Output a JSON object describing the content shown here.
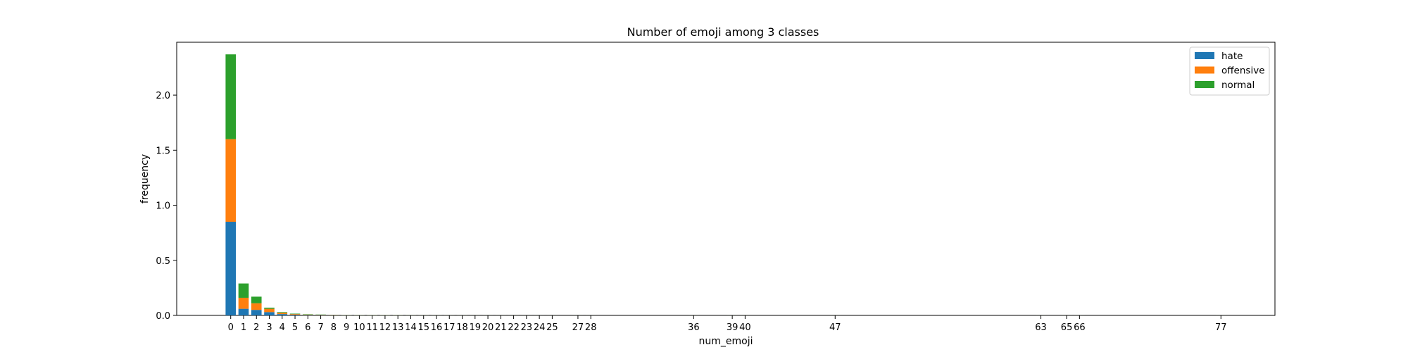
{
  "chart_data": {
    "type": "bar",
    "stacked": true,
    "title": "Number of emoji among 3 classes",
    "xlabel": "num_emoji",
    "ylabel": "frequency",
    "ylim": [
      0,
      2.48
    ],
    "xlim": [
      -4.2,
      81.2
    ],
    "yticks": [
      0.0,
      0.5,
      1.0,
      1.5,
      2.0
    ],
    "ytick_labels": [
      "0.0",
      "0.5",
      "1.0",
      "1.5",
      "2.0"
    ],
    "x": [
      0,
      1,
      2,
      3,
      4,
      5,
      6,
      7,
      8,
      9,
      10,
      11,
      12,
      13,
      14,
      15,
      16,
      17,
      18,
      19,
      20,
      21,
      22,
      23,
      24,
      25,
      27,
      28,
      36,
      39,
      40,
      47,
      63,
      65,
      66,
      77
    ],
    "series": [
      {
        "name": "hate",
        "color": "#1f77b4",
        "values": [
          0.85,
          0.06,
          0.05,
          0.03,
          0.012,
          0.006,
          0.004,
          0.003,
          0.002,
          0.001,
          0.001,
          0.001,
          0.001,
          0.0008,
          0.0006,
          0.0005,
          0.0004,
          0.0003,
          0.0003,
          0.0002,
          0.0002,
          0.0002,
          0.0002,
          0.0001,
          0.0001,
          0.0001,
          0.0001,
          0.0001,
          0.0001,
          0.0001,
          0.0001,
          0.0001,
          0.0001,
          0.0001,
          0.0001,
          0.0001
        ]
      },
      {
        "name": "offensive",
        "color": "#ff7f0e",
        "values": [
          0.75,
          0.1,
          0.06,
          0.03,
          0.012,
          0.006,
          0.004,
          0.003,
          0.002,
          0.001,
          0.001,
          0.001,
          0.001,
          0.0008,
          0.0006,
          0.0005,
          0.0004,
          0.0003,
          0.0003,
          0.0002,
          0.0002,
          0.0002,
          0.0002,
          0.0001,
          0.0001,
          0.0001,
          0.0001,
          0.0001,
          0.0001,
          0.0001,
          0.0001,
          0.0001,
          0.0001,
          0.0001,
          0.0001,
          0.0001
        ]
      },
      {
        "name": "normal",
        "color": "#2ca02c",
        "values": [
          0.77,
          0.13,
          0.06,
          0.01,
          0.006,
          0.004,
          0.003,
          0.002,
          0.001,
          0.001,
          0.001,
          0.001,
          0.001,
          0.0008,
          0.0006,
          0.0005,
          0.0004,
          0.0003,
          0.0003,
          0.0002,
          0.0002,
          0.0002,
          0.0002,
          0.0001,
          0.0001,
          0.0001,
          0.0001,
          0.0001,
          0.0001,
          0.0001,
          0.0001,
          0.0001,
          0.0001,
          0.0001,
          0.0001,
          0.0001
        ]
      }
    ],
    "legend_position": "top-right",
    "grid": false
  }
}
